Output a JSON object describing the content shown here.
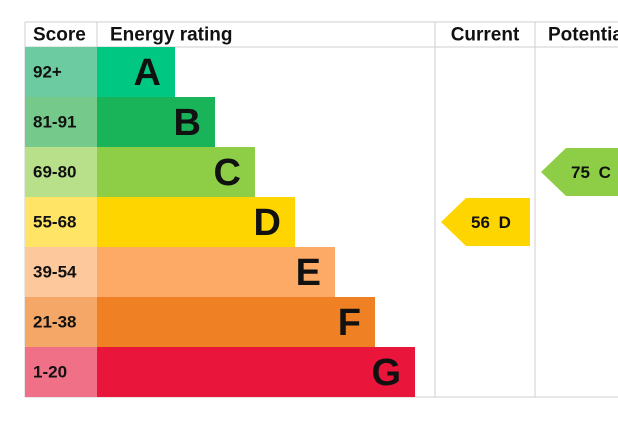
{
  "header": {
    "score": "Score",
    "rating": "Energy rating",
    "current": "Current",
    "potential": "Potential"
  },
  "bands": [
    {
      "range": "92+",
      "letter": "A",
      "color": "#00c781",
      "score_color": "#6ccba0"
    },
    {
      "range": "81-91",
      "letter": "B",
      "color": "#19b459",
      "score_color": "#75c98a"
    },
    {
      "range": "69-80",
      "letter": "C",
      "color": "#8dce46",
      "score_color": "#b8e08a"
    },
    {
      "range": "55-68",
      "letter": "D",
      "color": "#ffd500",
      "score_color": "#ffe466"
    },
    {
      "range": "39-54",
      "letter": "E",
      "color": "#fcaa65",
      "score_color": "#fdc89c"
    },
    {
      "range": "21-38",
      "letter": "F",
      "color": "#ef8023",
      "score_color": "#f4a766"
    },
    {
      "range": "1-20",
      "letter": "G",
      "color": "#e9153b",
      "score_color": "#f07088"
    }
  ],
  "current": {
    "value": 56,
    "letter": "D"
  },
  "potential": {
    "value": 75,
    "letter": "C"
  }
}
